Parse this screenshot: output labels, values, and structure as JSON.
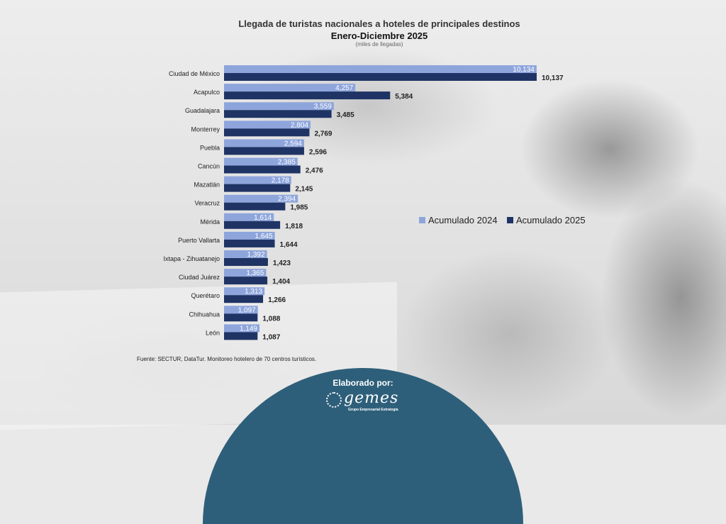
{
  "chart_data": {
    "type": "bar",
    "orientation": "horizontal",
    "title": "Llegada de turistas  nacionales a hoteles de principales destinos",
    "subtitle": "Enero-Diciembre 2025",
    "unit_note": "(miles de llegadas)",
    "categories": [
      "Ciudad de México",
      "Acapulco",
      "Guadalajara",
      "Monterrey",
      "Puebla",
      "Cancún",
      "Mazatlán",
      "Veracruz",
      "Mérida",
      "Puerto Vallarta",
      "Ixtapa - Zihuatanejo",
      "Ciudad Juárez",
      "Querétaro",
      "Chihuahua",
      "León"
    ],
    "series": [
      {
        "name": "Acumulado 2024",
        "color": "#8ea5dc",
        "values": [
          10134,
          4257,
          3559,
          2804,
          2594,
          2385,
          2178,
          2394,
          1614,
          1645,
          1392,
          1365,
          1313,
          1097,
          1149
        ],
        "labels": [
          "10,134",
          "4,257",
          "3,559",
          "2,804",
          "2,594",
          "2,385",
          "2,178",
          "2,394",
          "1,614",
          "1,645",
          "1,392",
          "1,365",
          "1,313",
          "1,097",
          "1,149"
        ]
      },
      {
        "name": "Acumulado 2025",
        "color": "#1f3464",
        "values": [
          10137,
          5384,
          3485,
          2769,
          2596,
          2476,
          2145,
          1985,
          1818,
          1644,
          1423,
          1404,
          1266,
          1088,
          1087
        ],
        "labels": [
          "10,137",
          "5,384",
          "3,485",
          "2,769",
          "2,596",
          "2,476",
          "2,145",
          "1,985",
          "1,818",
          "1,644",
          "1,423",
          "1,404",
          "1,266",
          "1,088",
          "1,087"
        ]
      }
    ],
    "xlim": [
      0,
      10137
    ],
    "grid": false,
    "legend_position": "right"
  },
  "source_note": "Fuente: SECTUR, DataTur. Monitoreo hotelero de 70 centros turísticos.",
  "footer": {
    "label": "Elaborado por:",
    "logo_word": "gemes",
    "logo_tagline": "Grupo Empresarial Estrategia",
    "color": "#2e5f7a"
  }
}
